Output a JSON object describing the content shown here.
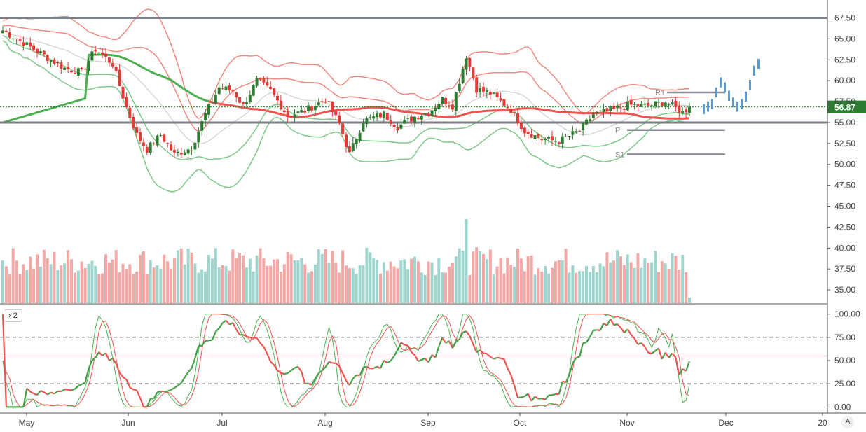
{
  "chart_data": {
    "type": "candlestick",
    "price_axis": {
      "range": [
        33.5,
        68.8
      ],
      "ticks": [
        {
          "value": 67.5,
          "label": "67.50"
        },
        {
          "value": 65,
          "label": "65.00"
        },
        {
          "value": 62.5,
          "label": "62.50"
        },
        {
          "value": 60,
          "label": "60.00"
        },
        {
          "value": 57.5,
          "label": "57.50"
        },
        {
          "value": 55,
          "label": "55.00"
        },
        {
          "value": 52.5,
          "label": "52.50"
        },
        {
          "value": 50,
          "label": "50.00"
        },
        {
          "value": 47.5,
          "label": "47.50"
        },
        {
          "value": 45,
          "label": "45.00"
        },
        {
          "value": 42.5,
          "label": "42.50"
        },
        {
          "value": 40,
          "label": "40.00"
        },
        {
          "value": 37.5,
          "label": "37.50"
        },
        {
          "value": 35,
          "label": "35.00"
        }
      ]
    },
    "last_price": {
      "value": 56.87,
      "label": "56.87"
    },
    "time_axis": [
      "May",
      "Jun",
      "Jul",
      "Aug",
      "Sep",
      "Oct",
      "Nov",
      "Dec",
      "20"
    ],
    "oscillator": {
      "pane_label": "2",
      "range": [
        -5,
        108
      ],
      "ticks": [
        {
          "value": 100,
          "label": "100.00"
        },
        {
          "value": 75,
          "label": "75.00"
        },
        {
          "value": 50,
          "label": "50.00"
        },
        {
          "value": 25,
          "label": "25.00"
        },
        {
          "value": 0,
          "label": "0.00"
        }
      ]
    },
    "horizontal_levels": [
      67.5,
      55.0
    ],
    "pivots": [
      {
        "label": "R1",
        "value": 58.6
      },
      {
        "label": "P",
        "value": 54.1
      },
      {
        "label": "S1",
        "value": 51.2
      }
    ],
    "anchors": [
      [
        0,
        66.0
      ],
      [
        10,
        63.5
      ],
      [
        18,
        61.5
      ],
      [
        23,
        61.0
      ],
      [
        27,
        63.8
      ],
      [
        32,
        62.0
      ],
      [
        36,
        56.8
      ],
      [
        39,
        53.5
      ],
      [
        42,
        51.8
      ],
      [
        46,
        53.5
      ],
      [
        50,
        51.2
      ],
      [
        55,
        52.0
      ],
      [
        59,
        56.0
      ],
      [
        63,
        59.2
      ],
      [
        67,
        58.8
      ],
      [
        70,
        57.0
      ],
      [
        74,
        60.0
      ],
      [
        78,
        58.8
      ],
      [
        83,
        55.8
      ],
      [
        88,
        56.4
      ],
      [
        94,
        57.8
      ],
      [
        98,
        54.8
      ],
      [
        101,
        51.2
      ],
      [
        105,
        55.2
      ],
      [
        111,
        56.0
      ],
      [
        115,
        54.5
      ],
      [
        120,
        55.7
      ],
      [
        124,
        56.2
      ],
      [
        128,
        57.8
      ],
      [
        131,
        57.0
      ],
      [
        135,
        63.0
      ],
      [
        138,
        59.0
      ],
      [
        142,
        58.5
      ],
      [
        148,
        56.5
      ],
      [
        152,
        54.0
      ],
      [
        157,
        53.0
      ],
      [
        162,
        52.8
      ],
      [
        168,
        54.0
      ],
      [
        172,
        56.0
      ],
      [
        178,
        56.5
      ],
      [
        182,
        57.1
      ],
      [
        188,
        57.0
      ],
      [
        193,
        57.5
      ],
      [
        198,
        56.2
      ],
      [
        200,
        56.87
      ]
    ],
    "forecast": [
      [
        1228,
        56.6
      ],
      [
        1234,
        56.9
      ],
      [
        1240,
        57.2
      ],
      [
        1246,
        58.6
      ],
      [
        1252,
        59.8
      ],
      [
        1258,
        59.2
      ],
      [
        1264,
        58.2
      ],
      [
        1270,
        57.4
      ],
      [
        1276,
        56.9
      ],
      [
        1282,
        57.2
      ],
      [
        1288,
        58.1
      ],
      [
        1294,
        59.5
      ],
      [
        1300,
        61.2
      ],
      [
        1306,
        62.0
      ]
    ]
  }
}
